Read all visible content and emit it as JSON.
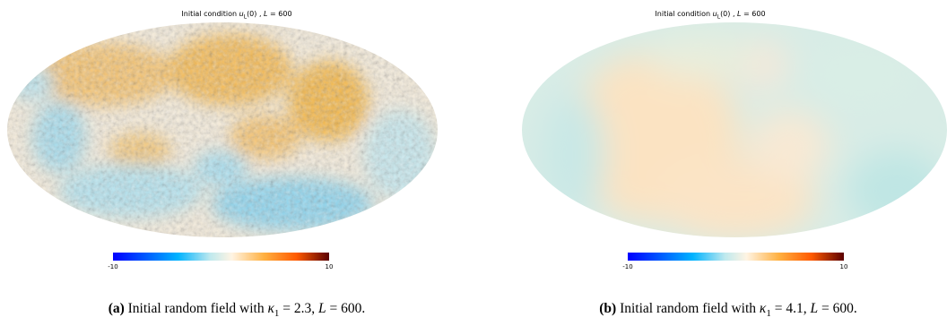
{
  "panels": [
    {
      "id": "a",
      "title_prefix": "Initial condition",
      "title_math": "u",
      "title_sub": "L",
      "title_arg": "(0) ,",
      "title_L": "L",
      "title_eq": " = 600",
      "colorbar": {
        "min_label": "-10",
        "max_label": "10"
      },
      "caption": {
        "label": "(a)",
        "text_1": " Initial random field with ",
        "kappa": "κ",
        "kappa_sub": "1",
        "kappa_eq": " = 2.3, ",
        "L": "L",
        "L_eq": " = 600."
      }
    },
    {
      "id": "b",
      "title_prefix": "Initial condition",
      "title_math": "u",
      "title_sub": "L",
      "title_arg": "(0) ,",
      "title_L": "L",
      "title_eq": " = 600",
      "colorbar": {
        "min_label": "-10",
        "max_label": "10"
      },
      "caption": {
        "label": "(b)",
        "text_1": " Initial random field with ",
        "kappa": "κ",
        "kappa_sub": "1",
        "kappa_eq": " = 4.1, ",
        "L": "L",
        "L_eq": " = 600."
      }
    }
  ],
  "colormap": {
    "name": "planck",
    "stops": [
      "#0000ff",
      "#00b3ff",
      "#bfe9ee",
      "#fff4e3",
      "#ffb040",
      "#ff5a00",
      "#5a0000"
    ]
  }
}
